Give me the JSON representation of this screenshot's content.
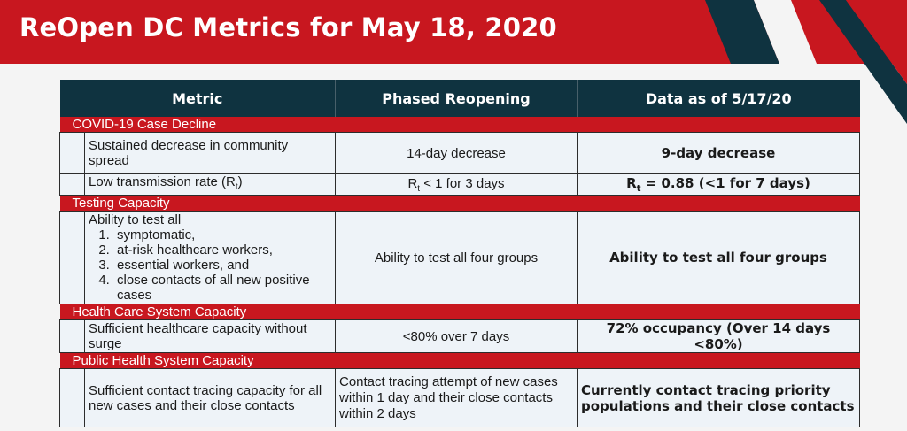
{
  "title": "ReOpen DC Metrics for May 18, 2020",
  "colors": {
    "banner": "#c8171f",
    "header": "#0f3340",
    "section": "#c8171f",
    "cell": "#eef3f8",
    "accent_dark": "#0f3340"
  },
  "table": {
    "headers": {
      "metric": "Metric",
      "phased": "Phased Reopening",
      "data": "Data as of 5/17/20"
    },
    "sections": {
      "case_decline": {
        "label": "COVID-19 Case Decline",
        "row1": {
          "metric": "Sustained decrease in community spread",
          "phased": "14-day decrease",
          "data": "9-day decrease"
        },
        "row2": {
          "metric_prefix": "Low transmission rate (R",
          "metric_sub": "t",
          "metric_suffix": ")",
          "phased_prefix": "R",
          "phased_sub": "t",
          "phased_suffix": " < 1 for 3 days",
          "data_prefix": "R",
          "data_sub": "t",
          "data_suffix": " = 0.88 (<1 for 7 days)"
        }
      },
      "testing": {
        "label": "Testing Capacity",
        "metric_intro": "Ability to test all",
        "groups": [
          "symptomatic,",
          "at-risk healthcare workers,",
          "essential workers, and",
          "close contacts of all new positive cases"
        ],
        "phased": "Ability to test all four groups",
        "data": "Ability to test all four groups"
      },
      "health_care": {
        "label": "Health Care System Capacity",
        "metric": "Sufficient healthcare capacity without surge",
        "phased": "<80% over 7 days",
        "data": "72% occupancy (Over 14 days <80%)"
      },
      "public_health": {
        "label": "Public Health System Capacity",
        "metric": "Sufficient contact tracing capacity for all new cases and their close contacts",
        "phased": "Contact tracing attempt of new cases within 1 day and their close contacts within 2 days",
        "data": "Currently contact tracing priority populations and their close contacts"
      }
    }
  }
}
